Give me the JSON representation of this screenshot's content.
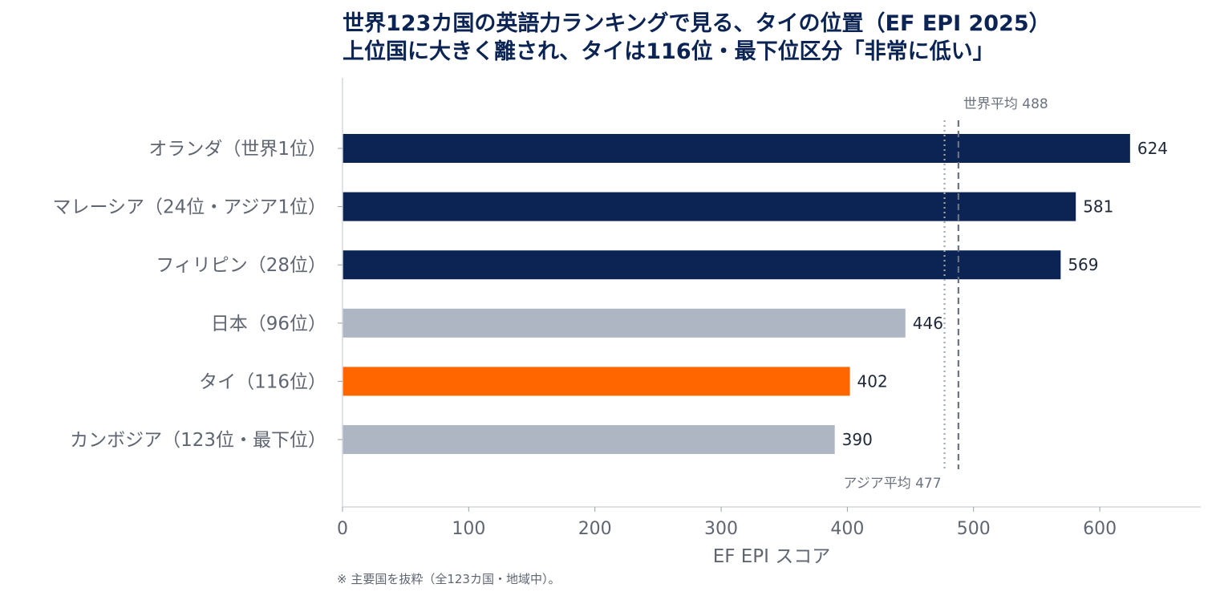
{
  "chart_data": {
    "type": "bar",
    "orientation": "horizontal",
    "title": "世界123カ国の英語力ランキングで見る、タイの位置（EF EPI 2025）",
    "subtitle": "上位国に大きく離され、タイは116位・最下位区分「非常に低い」",
    "categories": [
      "オランダ（世界1位）",
      "マレーシア（24位・アジア1位）",
      "フィリピン（28位）",
      "日本（96位）",
      "タイ（116位）",
      "カンボジア（123位・最下位）"
    ],
    "values": [
      624,
      581,
      569,
      446,
      402,
      390
    ],
    "value_labels": [
      "624",
      "581",
      "569",
      "446",
      "402",
      "390"
    ],
    "bar_colors": [
      "#0b2454",
      "#0b2454",
      "#0b2454",
      "#adb6c2",
      "#ff6600",
      "#adb6c2"
    ],
    "xlabel": "EF EPI スコア",
    "ylabel": "",
    "xlim": [
      0,
      680
    ],
    "xticks": [
      0,
      100,
      200,
      300,
      400,
      500,
      600
    ],
    "xtick_labels": [
      "0",
      "100",
      "200",
      "300",
      "400",
      "500",
      "600"
    ],
    "grid": false,
    "legend": "none",
    "reference_lines": [
      {
        "label": "世界平均 488",
        "value": 488,
        "style": "dashed",
        "color": "#6b7280",
        "label_position": "top"
      },
      {
        "label": "アジア平均 477",
        "value": 477,
        "style": "dotted",
        "color": "#a0a6b0",
        "label_position": "bottom"
      }
    ],
    "note": "※ 主要国を抜粋（全123カ国・地域中）。"
  }
}
